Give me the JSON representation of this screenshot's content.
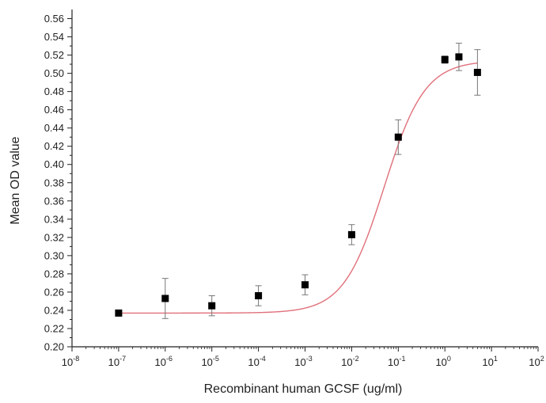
{
  "chart_data": {
    "type": "scatter",
    "xlabel": "Recombinant human GCSF (ug/ml)",
    "ylabel": "Mean OD value",
    "x_scale": "log",
    "xlim": [
      1e-08,
      100
    ],
    "ylim": [
      0.2,
      0.57
    ],
    "x_ticks": [
      {
        "base": "10",
        "exp": "-8"
      },
      {
        "base": "10",
        "exp": "-7"
      },
      {
        "base": "10",
        "exp": "-6"
      },
      {
        "base": "10",
        "exp": "-5"
      },
      {
        "base": "10",
        "exp": "-4"
      },
      {
        "base": "10",
        "exp": "-3"
      },
      {
        "base": "10",
        "exp": "-2"
      },
      {
        "base": "10",
        "exp": "-1"
      },
      {
        "base": "10",
        "exp": "0"
      },
      {
        "base": "10",
        "exp": "1"
      },
      {
        "base": "10",
        "exp": "2"
      }
    ],
    "y_ticks": [
      "0.20",
      "0.22",
      "0.24",
      "0.26",
      "0.28",
      "0.30",
      "0.32",
      "0.34",
      "0.36",
      "0.38",
      "0.40",
      "0.42",
      "0.44",
      "0.46",
      "0.48",
      "0.50",
      "0.52",
      "0.54",
      "0.56"
    ],
    "grid": false,
    "series": [
      {
        "marker": "square",
        "color": "#000000",
        "points": [
          {
            "x": 1e-07,
            "y": 0.237,
            "err": 0.002
          },
          {
            "x": 1e-06,
            "y": 0.253,
            "err": 0.022
          },
          {
            "x": 1e-05,
            "y": 0.245,
            "err": 0.011
          },
          {
            "x": 0.0001,
            "y": 0.256,
            "err": 0.011
          },
          {
            "x": 0.001,
            "y": 0.268,
            "err": 0.011
          },
          {
            "x": 0.01,
            "y": 0.323,
            "err": 0.011
          },
          {
            "x": 0.1,
            "y": 0.43,
            "err": 0.019
          },
          {
            "x": 1,
            "y": 0.515,
            "err": 0.004
          },
          {
            "x": 2,
            "y": 0.518,
            "err": 0.015
          },
          {
            "x": 5,
            "y": 0.501,
            "err": 0.025
          }
        ]
      }
    ],
    "fit_curve": {
      "color": "#e0707a",
      "model": "4PL",
      "bottom": 0.237,
      "top": 0.514,
      "ec50": 0.05,
      "hill": 1.0
    }
  }
}
